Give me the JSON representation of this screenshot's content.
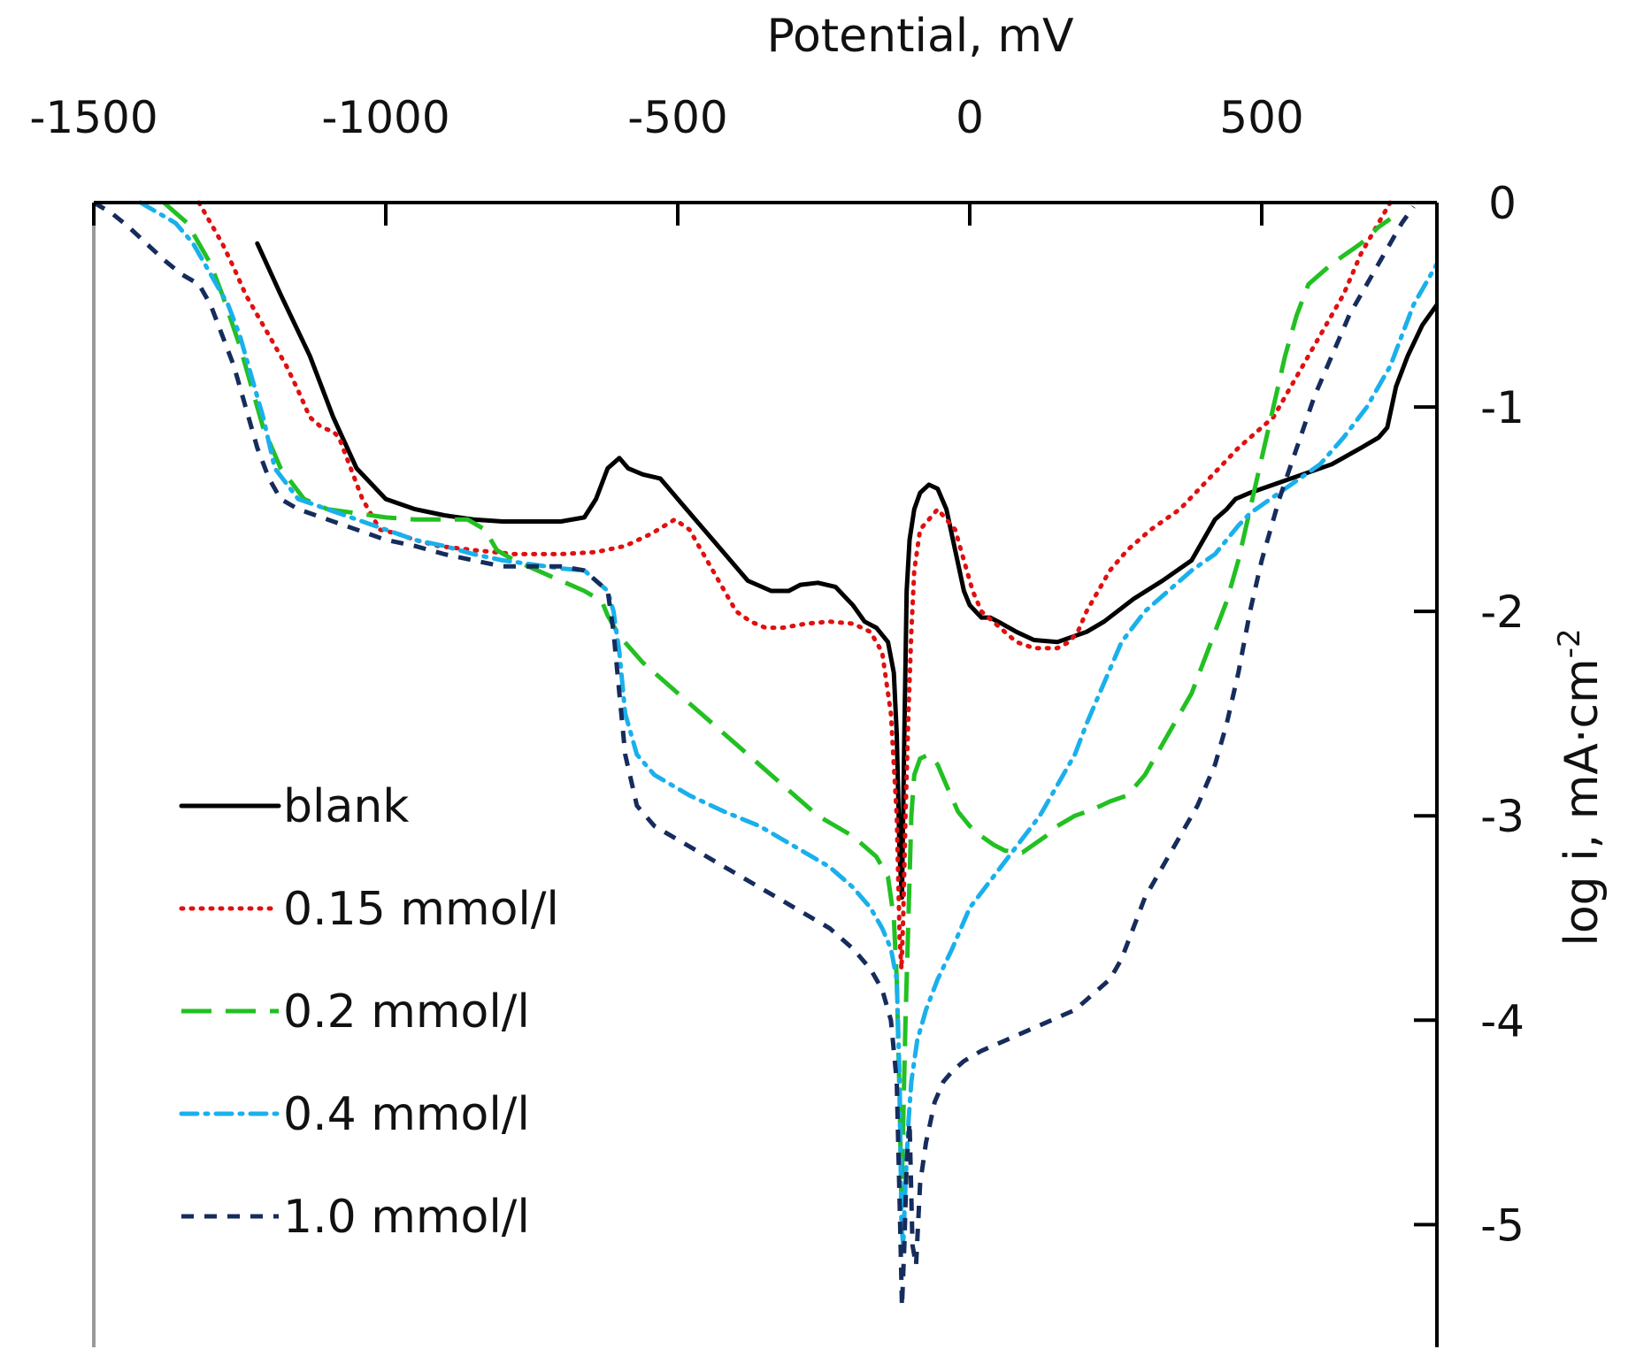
{
  "chart_data": {
    "type": "line",
    "title": "",
    "xlabel": "Potential, mV",
    "ylabel": "log i, mA·cm",
    "ylabel_sup": "-2",
    "xlim": [
      -1500,
      800
    ],
    "ylim": [
      -5.6,
      0
    ],
    "xticks": [
      -1500,
      -1000,
      -500,
      0,
      500
    ],
    "xtick_labels": [
      "-1500",
      "-1000",
      "-500",
      "0",
      "500"
    ],
    "yticks": [
      0,
      -1,
      -2,
      -3,
      -4,
      -5
    ],
    "ytick_labels": [
      "0",
      "-1",
      "-2",
      "-3",
      "-4",
      "-5"
    ],
    "grid": false,
    "legend_position": "bottom-left",
    "series": [
      {
        "name": "blank",
        "color": "#000000",
        "dash": "solid",
        "x": [
          -1220,
          -1180,
          -1130,
          -1090,
          -1050,
          -1000,
          -950,
          -900,
          -850,
          -800,
          -750,
          -700,
          -660,
          -640,
          -620,
          -600,
          -585,
          -560,
          -530,
          -500,
          -470,
          -440,
          -410,
          -380,
          -340,
          -310,
          -290,
          -260,
          -230,
          -200,
          -180,
          -160,
          -140,
          -130,
          -125,
          -120,
          -116,
          -112,
          -108,
          -103,
          -95,
          -85,
          -70,
          -55,
          -40,
          -25,
          -10,
          0,
          10,
          20,
          35,
          55,
          80,
          110,
          150,
          200,
          230,
          280,
          330,
          380,
          420,
          440,
          455,
          480,
          520,
          570,
          620,
          670,
          700,
          715,
          730,
          750,
          775,
          800
        ],
        "y": [
          -0.2,
          -0.45,
          -0.75,
          -1.05,
          -1.3,
          -1.45,
          -1.5,
          -1.53,
          -1.55,
          -1.56,
          -1.56,
          -1.56,
          -1.54,
          -1.45,
          -1.3,
          -1.25,
          -1.3,
          -1.33,
          -1.35,
          -1.45,
          -1.55,
          -1.65,
          -1.75,
          -1.85,
          -1.9,
          -1.9,
          -1.87,
          -1.86,
          -1.88,
          -1.97,
          -2.05,
          -2.08,
          -2.15,
          -2.3,
          -2.6,
          -3.2,
          -3.4,
          -2.6,
          -1.9,
          -1.65,
          -1.5,
          -1.42,
          -1.38,
          -1.4,
          -1.5,
          -1.7,
          -1.9,
          -1.97,
          -2.0,
          -2.03,
          -2.03,
          -2.06,
          -2.1,
          -2.14,
          -2.15,
          -2.1,
          -2.05,
          -1.94,
          -1.85,
          -1.75,
          -1.55,
          -1.5,
          -1.45,
          -1.42,
          -1.38,
          -1.33,
          -1.28,
          -1.2,
          -1.15,
          -1.1,
          -0.9,
          -0.75,
          -0.6,
          -0.5
        ]
      },
      {
        "name": "0.15 mmol/l",
        "color": "#e01010",
        "dash": "dotted",
        "x": [
          -1320,
          -1300,
          -1280,
          -1260,
          -1240,
          -1220,
          -1200,
          -1170,
          -1150,
          -1130,
          -1110,
          -1090,
          -1080,
          -1060,
          -1040,
          -1010,
          -980,
          -950,
          -910,
          -850,
          -780,
          -700,
          -640,
          -590,
          -545,
          -505,
          -480,
          -460,
          -440,
          -420,
          -400,
          -375,
          -350,
          -320,
          -280,
          -240,
          -200,
          -170,
          -150,
          -135,
          -125,
          -120,
          -117,
          -114,
          -110,
          -105,
          -100,
          -95,
          -85,
          -70,
          -55,
          -40,
          -25,
          -10,
          5,
          20,
          40,
          60,
          80,
          110,
          150,
          170,
          185,
          200,
          220,
          240,
          270,
          310,
          360,
          410,
          460,
          520,
          560,
          600,
          640,
          670,
          700,
          720
        ],
        "y": [
          0,
          -0.1,
          -0.2,
          -0.32,
          -0.45,
          -0.55,
          -0.65,
          -0.8,
          -0.92,
          -1.05,
          -1.1,
          -1.12,
          -1.15,
          -1.3,
          -1.45,
          -1.6,
          -1.62,
          -1.65,
          -1.68,
          -1.7,
          -1.72,
          -1.72,
          -1.71,
          -1.68,
          -1.62,
          -1.55,
          -1.6,
          -1.7,
          -1.8,
          -1.9,
          -2.0,
          -2.05,
          -2.08,
          -2.08,
          -2.06,
          -2.05,
          -2.06,
          -2.1,
          -2.2,
          -2.5,
          -3.0,
          -3.6,
          -3.75,
          -3.5,
          -3.0,
          -2.5,
          -2.1,
          -1.8,
          -1.6,
          -1.55,
          -1.5,
          -1.55,
          -1.6,
          -1.75,
          -1.9,
          -2.0,
          -2.05,
          -2.1,
          -2.15,
          -2.18,
          -2.18,
          -2.15,
          -2.1,
          -2.0,
          -1.9,
          -1.8,
          -1.7,
          -1.6,
          -1.5,
          -1.35,
          -1.2,
          -1.05,
          -0.85,
          -0.65,
          -0.45,
          -0.25,
          -0.1,
          0
        ]
      },
      {
        "name": "0.2 mmol/l",
        "color": "#22c022",
        "dash": "longdash",
        "x": [
          -1380,
          -1360,
          -1340,
          -1320,
          -1300,
          -1280,
          -1250,
          -1230,
          -1210,
          -1180,
          -1140,
          -1100,
          -1050,
          -1000,
          -950,
          -900,
          -860,
          -830,
          -810,
          -780,
          -740,
          -700,
          -660,
          -630,
          -620,
          -600,
          -560,
          -500,
          -440,
          -380,
          -320,
          -260,
          -200,
          -160,
          -140,
          -130,
          -125,
          -120,
          -117,
          -114,
          -110,
          -105,
          -100,
          -95,
          -85,
          -70,
          -55,
          -40,
          -20,
          0,
          20,
          40,
          60,
          90,
          110,
          130,
          150,
          180,
          210,
          240,
          270,
          300,
          320,
          340,
          360,
          380,
          400,
          420,
          440,
          460,
          480,
          500,
          520,
          540,
          560,
          580,
          620,
          670,
          700,
          720
        ],
        "y": [
          0,
          -0.05,
          -0.1,
          -0.2,
          -0.3,
          -0.45,
          -0.7,
          -0.9,
          -1.1,
          -1.3,
          -1.45,
          -1.5,
          -1.52,
          -1.54,
          -1.55,
          -1.55,
          -1.55,
          -1.6,
          -1.7,
          -1.75,
          -1.8,
          -1.85,
          -1.9,
          -1.95,
          -2.02,
          -2.12,
          -2.25,
          -2.4,
          -2.55,
          -2.7,
          -2.85,
          -3.0,
          -3.1,
          -3.2,
          -3.3,
          -3.5,
          -3.8,
          -4.4,
          -4.9,
          -4.5,
          -4.0,
          -3.5,
          -3.0,
          -2.8,
          -2.72,
          -2.7,
          -2.75,
          -2.85,
          -2.98,
          -3.05,
          -3.1,
          -3.14,
          -3.17,
          -3.18,
          -3.14,
          -3.1,
          -3.05,
          -3.0,
          -2.97,
          -2.93,
          -2.9,
          -2.8,
          -2.7,
          -2.6,
          -2.5,
          -2.4,
          -2.25,
          -2.1,
          -1.95,
          -1.75,
          -1.5,
          -1.25,
          -1.0,
          -0.75,
          -0.55,
          -0.4,
          -0.3,
          -0.2,
          -0.12,
          -0.08
        ]
      },
      {
        "name": "0.4 mmol/l",
        "color": "#19b0ec",
        "dash": "dashdot",
        "x": [
          -1420,
          -1390,
          -1360,
          -1330,
          -1300,
          -1270,
          -1250,
          -1230,
          -1210,
          -1190,
          -1150,
          -1100,
          -1050,
          -1000,
          -950,
          -900,
          -850,
          -800,
          -750,
          -700,
          -660,
          -640,
          -620,
          -610,
          -600,
          -590,
          -570,
          -540,
          -480,
          -420,
          -360,
          -300,
          -240,
          -200,
          -170,
          -150,
          -135,
          -125,
          -120,
          -117,
          -114,
          -110,
          -105,
          -100,
          -90,
          -75,
          -55,
          -30,
          0,
          40,
          80,
          120,
          150,
          180,
          200,
          230,
          260,
          300,
          340,
          380,
          420,
          440,
          460,
          480,
          500,
          520,
          560,
          600,
          640,
          680,
          720,
          740,
          760,
          790,
          800
        ],
        "y": [
          0,
          -0.05,
          -0.1,
          -0.2,
          -0.35,
          -0.5,
          -0.65,
          -0.85,
          -1.05,
          -1.3,
          -1.45,
          -1.5,
          -1.55,
          -1.6,
          -1.65,
          -1.68,
          -1.72,
          -1.75,
          -1.77,
          -1.79,
          -1.8,
          -1.85,
          -1.9,
          -2.0,
          -2.2,
          -2.5,
          -2.7,
          -2.8,
          -2.9,
          -2.98,
          -3.05,
          -3.15,
          -3.25,
          -3.35,
          -3.45,
          -3.55,
          -3.65,
          -3.8,
          -4.3,
          -5.0,
          -5.1,
          -4.8,
          -4.5,
          -4.3,
          -4.1,
          -3.95,
          -3.8,
          -3.65,
          -3.45,
          -3.3,
          -3.15,
          -3.0,
          -2.85,
          -2.7,
          -2.55,
          -2.35,
          -2.15,
          -2.0,
          -1.9,
          -1.8,
          -1.72,
          -1.65,
          -1.58,
          -1.52,
          -1.48,
          -1.44,
          -1.36,
          -1.28,
          -1.15,
          -1.0,
          -0.8,
          -0.65,
          -0.5,
          -0.35,
          -0.3
        ]
      },
      {
        "name": "1.0 mmol/l",
        "color": "#152c5c",
        "dash": "dashed",
        "x": [
          -1500,
          -1470,
          -1440,
          -1410,
          -1380,
          -1350,
          -1320,
          -1300,
          -1280,
          -1260,
          -1240,
          -1220,
          -1200,
          -1180,
          -1150,
          -1100,
          -1050,
          -1000,
          -950,
          -900,
          -850,
          -800,
          -750,
          -700,
          -660,
          -640,
          -620,
          -610,
          -600,
          -590,
          -570,
          -540,
          -480,
          -420,
          -360,
          -300,
          -240,
          -200,
          -170,
          -150,
          -135,
          -125,
          -120,
          -116,
          -112,
          -108,
          -103,
          -98,
          -92,
          -85,
          -75,
          -60,
          -45,
          -30,
          -10,
          20,
          60,
          100,
          140,
          180,
          200,
          220,
          240,
          260,
          280,
          300,
          330,
          360,
          390,
          420,
          440,
          460,
          480,
          500,
          530,
          560,
          590,
          620,
          650,
          680,
          700,
          720,
          740,
          760
        ],
        "y": [
          0,
          -0.05,
          -0.12,
          -0.2,
          -0.28,
          -0.35,
          -0.4,
          -0.5,
          -0.65,
          -0.8,
          -1.0,
          -1.2,
          -1.35,
          -1.45,
          -1.5,
          -1.55,
          -1.6,
          -1.65,
          -1.68,
          -1.72,
          -1.75,
          -1.78,
          -1.78,
          -1.78,
          -1.8,
          -1.85,
          -1.9,
          -2.1,
          -2.4,
          -2.7,
          -2.95,
          -3.05,
          -3.15,
          -3.25,
          -3.35,
          -3.45,
          -3.55,
          -3.65,
          -3.75,
          -3.85,
          -4.0,
          -4.3,
          -4.9,
          -5.4,
          -5.1,
          -4.7,
          -4.5,
          -5.1,
          -5.2,
          -4.8,
          -4.6,
          -4.4,
          -4.3,
          -4.25,
          -4.2,
          -4.15,
          -4.1,
          -4.05,
          -4.0,
          -3.95,
          -3.9,
          -3.85,
          -3.8,
          -3.7,
          -3.55,
          -3.4,
          -3.25,
          -3.1,
          -2.95,
          -2.75,
          -2.55,
          -2.3,
          -2.0,
          -1.75,
          -1.45,
          -1.2,
          -0.95,
          -0.75,
          -0.55,
          -0.4,
          -0.3,
          -0.2,
          -0.1,
          -0.02
        ]
      }
    ]
  }
}
